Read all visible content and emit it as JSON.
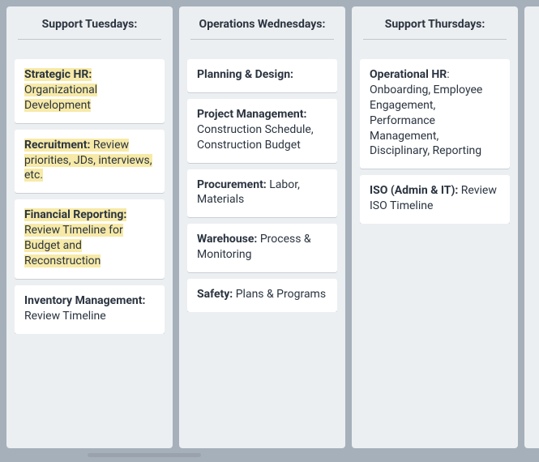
{
  "columns": [
    {
      "title": "Support Tuesdays:",
      "cards": [
        {
          "title": "Strategic HR:",
          "desc": " Organizational Development",
          "highlight": true
        },
        {
          "title": "Recruitment:",
          "desc": " Review priorities, JDs, interviews, etc.",
          "highlight": true
        },
        {
          "title": "Financial Reporting:",
          "desc": " Review Timeline for Budget and Reconstruction",
          "highlight": true
        },
        {
          "title": "Inventory Management:",
          "desc": " Review Timeline",
          "highlight": false
        }
      ]
    },
    {
      "title": "Operations Wednesdays:",
      "cards": [
        {
          "title": "Planning & Design:",
          "desc": "",
          "highlight": false
        },
        {
          "title": "Project Management:",
          "desc": " Construction Schedule, Construction Budget",
          "highlight": false
        },
        {
          "title": "Procurement:",
          "desc": " Labor, Materials",
          "highlight": false
        },
        {
          "title": "Warehouse:",
          "desc": " Process & Monitoring",
          "highlight": false
        },
        {
          "title": "Safety:",
          "desc": " Plans & Programs",
          "highlight": false
        }
      ]
    },
    {
      "title": "Support Thursdays:",
      "cards": [
        {
          "title": "Operational HR",
          "desc": ": Onboarding, Employee Engagement, Performance Management, Disciplinary, Reporting",
          "highlight": false
        },
        {
          "title": "ISO (Admin & IT):",
          "desc": " Review ISO Timeline",
          "highlight": false
        }
      ]
    }
  ]
}
